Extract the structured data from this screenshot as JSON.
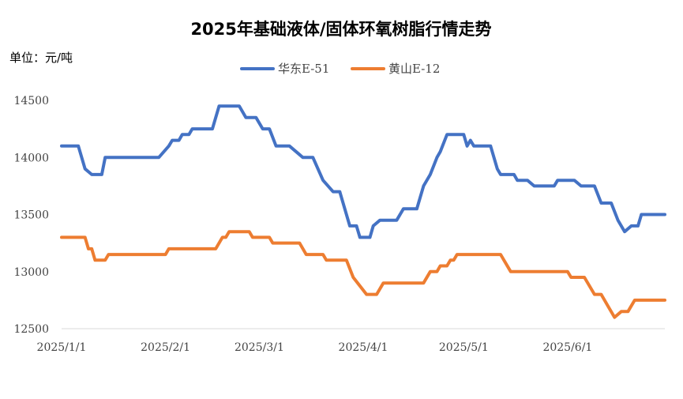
{
  "chart_data": {
    "type": "line",
    "title": "2025年基础液体/固体环氧树脂行情走势",
    "unit_label": "单位：元/吨",
    "xlabel": "",
    "ylabel": "",
    "ylim": [
      12500,
      14500
    ],
    "yticks": [
      12500,
      13000,
      13500,
      14000,
      14500
    ],
    "x_range": [
      "2025-01-01",
      "2025-06-30"
    ],
    "xticks": [
      {
        "label": "2025/1/1",
        "date": "2025-01-01"
      },
      {
        "label": "2025/2/1",
        "date": "2025-02-01"
      },
      {
        "label": "2025/3/1",
        "date": "2025-03-01"
      },
      {
        "label": "2025/4/1",
        "date": "2025-04-01"
      },
      {
        "label": "2025/5/1",
        "date": "2025-05-01"
      },
      {
        "label": "2025/6/1",
        "date": "2025-06-01"
      }
    ],
    "grid": false,
    "legend": "top-center",
    "series": [
      {
        "name": "华东E-51",
        "color": "#4472C4",
        "points": [
          [
            "2025-01-01",
            14100
          ],
          [
            "2025-01-06",
            14100
          ],
          [
            "2025-01-08",
            13900
          ],
          [
            "2025-01-10",
            13850
          ],
          [
            "2025-01-13",
            13850
          ],
          [
            "2025-01-14",
            14000
          ],
          [
            "2025-01-28",
            14000
          ],
          [
            "2025-01-30",
            14000
          ],
          [
            "2025-02-02",
            14100
          ],
          [
            "2025-02-03",
            14150
          ],
          [
            "2025-02-05",
            14150
          ],
          [
            "2025-02-06",
            14200
          ],
          [
            "2025-02-08",
            14200
          ],
          [
            "2025-02-09",
            14250
          ],
          [
            "2025-02-15",
            14250
          ],
          [
            "2025-02-17",
            14450
          ],
          [
            "2025-02-23",
            14450
          ],
          [
            "2025-02-25",
            14350
          ],
          [
            "2025-02-28",
            14350
          ],
          [
            "2025-03-02",
            14250
          ],
          [
            "2025-03-04",
            14250
          ],
          [
            "2025-03-06",
            14100
          ],
          [
            "2025-03-10",
            14100
          ],
          [
            "2025-03-14",
            14000
          ],
          [
            "2025-03-17",
            14000
          ],
          [
            "2025-03-20",
            13800
          ],
          [
            "2025-03-23",
            13700
          ],
          [
            "2025-03-25",
            13700
          ],
          [
            "2025-03-28",
            13400
          ],
          [
            "2025-03-30",
            13400
          ],
          [
            "2025-03-31",
            13300
          ],
          [
            "2025-04-03",
            13300
          ],
          [
            "2025-04-04",
            13400
          ],
          [
            "2025-04-06",
            13450
          ],
          [
            "2025-04-11",
            13450
          ],
          [
            "2025-04-13",
            13550
          ],
          [
            "2025-04-17",
            13550
          ],
          [
            "2025-04-19",
            13750
          ],
          [
            "2025-04-21",
            13850
          ],
          [
            "2025-04-23",
            14000
          ],
          [
            "2025-04-24",
            14050
          ],
          [
            "2025-04-26",
            14200
          ],
          [
            "2025-05-01",
            14200
          ],
          [
            "2025-05-02",
            14100
          ],
          [
            "2025-05-03",
            14150
          ],
          [
            "2025-05-04",
            14100
          ],
          [
            "2025-05-09",
            14100
          ],
          [
            "2025-05-11",
            13900
          ],
          [
            "2025-05-12",
            13850
          ],
          [
            "2025-05-16",
            13850
          ],
          [
            "2025-05-17",
            13800
          ],
          [
            "2025-05-20",
            13800
          ],
          [
            "2025-05-22",
            13750
          ],
          [
            "2025-05-28",
            13750
          ],
          [
            "2025-05-29",
            13800
          ],
          [
            "2025-06-03",
            13800
          ],
          [
            "2025-06-05",
            13750
          ],
          [
            "2025-06-09",
            13750
          ],
          [
            "2025-06-11",
            13600
          ],
          [
            "2025-06-14",
            13600
          ],
          [
            "2025-06-16",
            13450
          ],
          [
            "2025-06-18",
            13350
          ],
          [
            "2025-06-20",
            13400
          ],
          [
            "2025-06-22",
            13400
          ],
          [
            "2025-06-23",
            13500
          ],
          [
            "2025-06-30",
            13500
          ]
        ]
      },
      {
        "name": "黄山E-12",
        "color": "#ED7D31",
        "points": [
          [
            "2025-01-01",
            13300
          ],
          [
            "2025-01-08",
            13300
          ],
          [
            "2025-01-09",
            13200
          ],
          [
            "2025-01-10",
            13200
          ],
          [
            "2025-01-11",
            13100
          ],
          [
            "2025-01-14",
            13100
          ],
          [
            "2025-01-15",
            13150
          ],
          [
            "2025-02-01",
            13150
          ],
          [
            "2025-02-02",
            13200
          ],
          [
            "2025-02-16",
            13200
          ],
          [
            "2025-02-18",
            13300
          ],
          [
            "2025-02-19",
            13300
          ],
          [
            "2025-02-20",
            13350
          ],
          [
            "2025-02-26",
            13350
          ],
          [
            "2025-02-27",
            13300
          ],
          [
            "2025-03-04",
            13300
          ],
          [
            "2025-03-05",
            13250
          ],
          [
            "2025-03-13",
            13250
          ],
          [
            "2025-03-15",
            13150
          ],
          [
            "2025-03-20",
            13150
          ],
          [
            "2025-03-21",
            13100
          ],
          [
            "2025-03-27",
            13100
          ],
          [
            "2025-03-29",
            12950
          ],
          [
            "2025-04-02",
            12800
          ],
          [
            "2025-04-05",
            12800
          ],
          [
            "2025-04-07",
            12900
          ],
          [
            "2025-04-19",
            12900
          ],
          [
            "2025-04-21",
            13000
          ],
          [
            "2025-04-23",
            13000
          ],
          [
            "2025-04-24",
            13050
          ],
          [
            "2025-04-26",
            13050
          ],
          [
            "2025-04-27",
            13100
          ],
          [
            "2025-04-28",
            13100
          ],
          [
            "2025-04-29",
            13150
          ],
          [
            "2025-05-12",
            13150
          ],
          [
            "2025-05-15",
            13000
          ],
          [
            "2025-06-01",
            13000
          ],
          [
            "2025-06-02",
            12950
          ],
          [
            "2025-06-06",
            12950
          ],
          [
            "2025-06-09",
            12800
          ],
          [
            "2025-06-11",
            12800
          ],
          [
            "2025-06-13",
            12700
          ],
          [
            "2025-06-15",
            12600
          ],
          [
            "2025-06-17",
            12650
          ],
          [
            "2025-06-19",
            12650
          ],
          [
            "2025-06-21",
            12750
          ],
          [
            "2025-06-30",
            12750
          ]
        ]
      }
    ]
  }
}
